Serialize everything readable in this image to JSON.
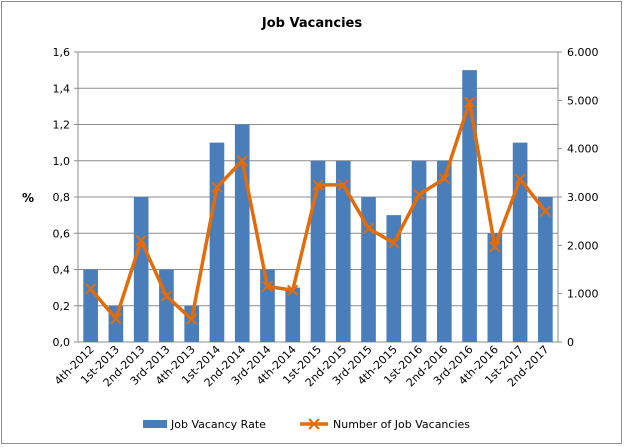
{
  "chart_data": {
    "type": "bar",
    "title": "Job Vacancies",
    "xlabel": "",
    "ylabel": "%",
    "ylabel_right": "",
    "ylim": [
      0,
      1.6
    ],
    "ylim_right": [
      0,
      6000
    ],
    "y_ticks": [
      "0,0",
      "0,2",
      "0,4",
      "0,6",
      "0,8",
      "1,0",
      "1,2",
      "1,4",
      "1,6"
    ],
    "y_right_ticks": [
      "0",
      "1.000",
      "2.000",
      "3.000",
      "4.000",
      "5.000",
      "6.000"
    ],
    "grid": true,
    "legend_position": "bottom",
    "categories": [
      "4th-2012",
      "1st-2013",
      "2nd-2013",
      "3rd-2013",
      "4th-2013",
      "1st-2014",
      "2nd-2014",
      "3rd-2014",
      "4th-2014",
      "1st-2015",
      "2nd-2015",
      "3rd-2015",
      "4th-2015",
      "1st-2016",
      "2nd-2016",
      "3rd-2016",
      "4th-2016",
      "1st-2017",
      "2nd-2017"
    ],
    "series": [
      {
        "name": "Job Vacancy Rate",
        "type": "bar",
        "axis": "left",
        "color": "#4a7ebb",
        "values": [
          0.4,
          0.2,
          0.8,
          0.4,
          0.2,
          1.1,
          1.2,
          0.4,
          0.3,
          1.0,
          1.0,
          0.8,
          0.7,
          1.0,
          1.0,
          1.5,
          0.6,
          1.1,
          0.8
        ]
      },
      {
        "name": "Number of Job Vacancies",
        "type": "line",
        "axis": "right",
        "color": "#e36c0a",
        "marker": "x",
        "values": [
          1100,
          480,
          2100,
          950,
          470,
          3200,
          3750,
          1150,
          1070,
          3250,
          3250,
          2350,
          2050,
          3050,
          3380,
          4960,
          1970,
          3370,
          2700
        ]
      }
    ]
  }
}
